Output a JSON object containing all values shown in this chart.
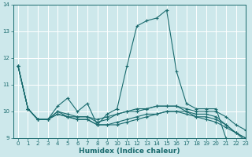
{
  "title": "",
  "xlabel": "Humidex (Indice chaleur)",
  "ylabel": "",
  "background_color": "#cde8eb",
  "grid_color": "#ffffff",
  "line_color": "#1a6b6e",
  "xlim": [
    -0.5,
    23
  ],
  "ylim": [
    9,
    14
  ],
  "yticks": [
    9,
    10,
    11,
    12,
    13,
    14
  ],
  "xticks": [
    0,
    1,
    2,
    3,
    4,
    5,
    6,
    7,
    8,
    9,
    10,
    11,
    12,
    13,
    14,
    15,
    16,
    17,
    18,
    19,
    20,
    21,
    22,
    23
  ],
  "lines": [
    [
      11.7,
      10.1,
      9.7,
      9.7,
      10.2,
      10.5,
      10.0,
      10.3,
      9.5,
      9.9,
      10.1,
      11.7,
      13.2,
      13.4,
      13.5,
      13.8,
      11.5,
      10.3,
      10.1,
      10.1,
      10.1,
      9.0,
      8.8,
      8.8
    ],
    [
      11.7,
      10.1,
      9.7,
      9.7,
      10.0,
      9.9,
      9.8,
      9.8,
      9.7,
      9.8,
      9.9,
      10.0,
      10.1,
      10.1,
      10.2,
      10.2,
      10.2,
      10.1,
      10.0,
      10.0,
      10.0,
      9.8,
      9.5,
      9.3
    ],
    [
      11.7,
      10.1,
      9.7,
      9.7,
      9.9,
      9.8,
      9.7,
      9.7,
      9.5,
      9.5,
      9.5,
      9.6,
      9.7,
      9.8,
      9.9,
      10.0,
      10.0,
      10.0,
      9.8,
      9.7,
      9.6,
      9.4,
      9.2,
      9.0
    ],
    [
      11.7,
      10.1,
      9.7,
      9.7,
      10.0,
      9.8,
      9.8,
      9.8,
      9.6,
      9.7,
      9.9,
      10.0,
      10.0,
      10.1,
      10.2,
      10.2,
      10.2,
      10.0,
      9.9,
      9.9,
      9.8,
      9.5,
      9.2,
      9.0
    ],
    [
      11.7,
      10.1,
      9.7,
      9.7,
      9.9,
      9.8,
      9.7,
      9.7,
      9.5,
      9.5,
      9.6,
      9.7,
      9.8,
      9.9,
      9.9,
      10.0,
      10.0,
      9.9,
      9.8,
      9.8,
      9.7,
      9.5,
      9.2,
      8.9
    ]
  ]
}
